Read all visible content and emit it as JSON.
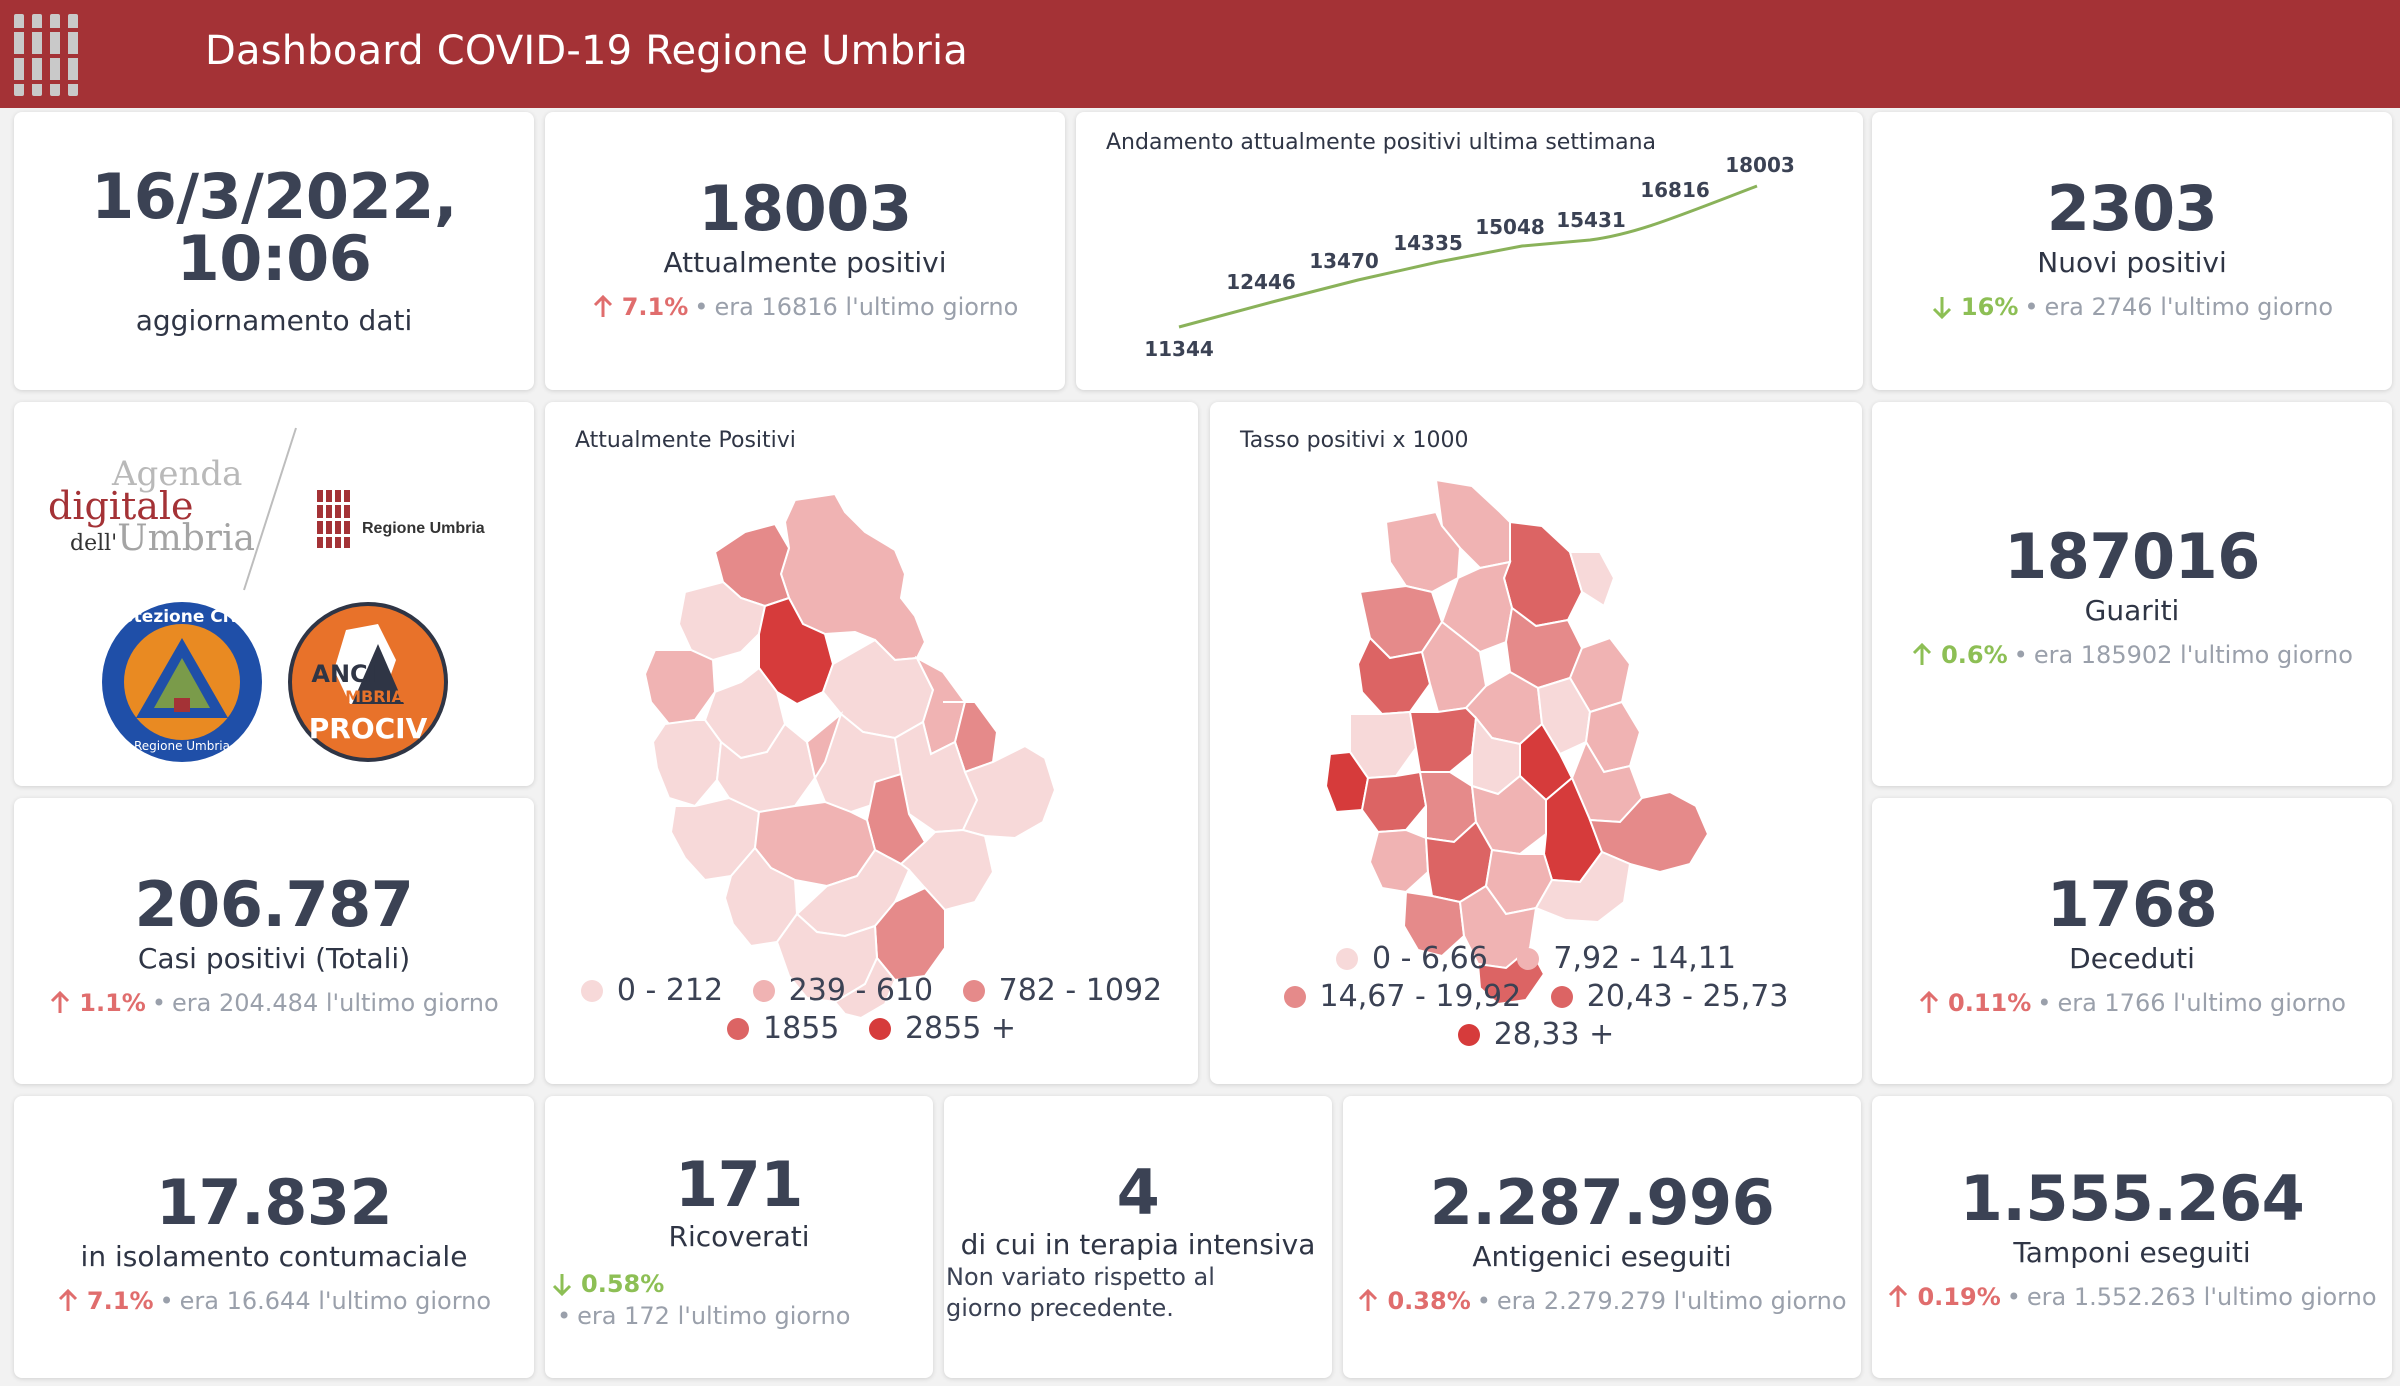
{
  "header": {
    "title": "Dashboard COVID-19 Regione Umbria"
  },
  "update": {
    "datetime": "16/3/2022, 10:06",
    "label": "aggiornamento dati"
  },
  "attualmente_positivi": {
    "value": "18003",
    "label": "Attualmente positivi",
    "pct": "7.1%",
    "sep": "•",
    "prev": "era 16816",
    "suffix": "l'ultimo giorno"
  },
  "trend": {
    "title": "Andamento attualmente positivi ultima settimana",
    "labels": [
      "11344",
      "12446",
      "13470",
      "14335",
      "15048",
      "15431",
      "16816",
      "18003"
    ]
  },
  "nuovi_positivi": {
    "value": "2303",
    "label": "Nuovi positivi",
    "pct": "16%",
    "sep": "•",
    "prev": "era 2746",
    "suffix": "l'ultimo giorno"
  },
  "logos": {
    "agenda_line1": "Agenda",
    "agenda_line2": "digitale",
    "agenda_line3a": "dell'",
    "agenda_line3b": "Umbria",
    "regione": "Regione Umbria",
    "protezione": "Protezione Civile",
    "protezione_sub": "Regione Umbria",
    "anci1": "ANCI",
    "anci2": "UMBRIA",
    "anci3": "PROCIV"
  },
  "map1": {
    "title": "Attualmente Positivi",
    "legend_row1": [
      "0 - 212",
      "239 - 610",
      "782 - 1092"
    ],
    "legend_row2": [
      "1855",
      "2855 +"
    ],
    "colors": [
      "#f7d9d9",
      "#f0b3b3",
      "#e58a8a",
      "#dc6464",
      "#d63b3b"
    ]
  },
  "map2": {
    "title": "Tasso positivi x 1000",
    "legend_row1": [
      "0 - 6,66",
      "7,92 - 14,11"
    ],
    "legend_row2": [
      "14,67 - 19,92",
      "20,43 - 25,73"
    ],
    "legend_row3": [
      "28,33 +"
    ],
    "colors": [
      "#f7d9d9",
      "#f0b3b3",
      "#e58a8a",
      "#dc6464",
      "#d63b3b"
    ]
  },
  "guariti": {
    "value": "187016",
    "label": "Guariti",
    "pct": "0.6%",
    "sep": "•",
    "prev": "era 185902",
    "suffix": "l'ultimo giorno"
  },
  "casi_totali": {
    "value": "206.787",
    "label": "Casi positivi (Totali)",
    "pct": "1.1%",
    "sep": "•",
    "prev": "era 204.484",
    "suffix": "l'ultimo giorno"
  },
  "deceduti": {
    "value": "1768",
    "label": "Deceduti",
    "pct": "0.11%",
    "sep": "•",
    "prev": "era 1766",
    "suffix": "l'ultimo giorno"
  },
  "isolamento": {
    "value": "17.832",
    "label": "in isolamento contumaciale",
    "pct": "7.1%",
    "sep": "•",
    "prev": "era 16.644",
    "suffix": "l'ultimo giorno"
  },
  "ricoverati": {
    "value": "171",
    "label": "Ricoverati",
    "pct": "0.58%",
    "sep": "•",
    "prev": "era 172",
    "suffix": "l'ultimo giorno"
  },
  "terapia": {
    "value": "4",
    "label": "di cui in terapia intensiva",
    "note": "Non variato rispetto al giorno precedente."
  },
  "antigenici": {
    "value": "2.287.996",
    "label": "Antigenici eseguiti",
    "pct": "0.38%",
    "sep": "•",
    "prev": "era 2.279.279",
    "suffix": "l'ultimo giorno"
  },
  "tamponi": {
    "value": "1.555.264",
    "label": "Tamponi eseguiti",
    "pct": "0.19%",
    "sep": "•",
    "prev": "era 1.552.263",
    "suffix": "l'ultimo giorno"
  },
  "icons": {
    "up": "arrow-up-icon",
    "down": "arrow-down-icon"
  }
}
